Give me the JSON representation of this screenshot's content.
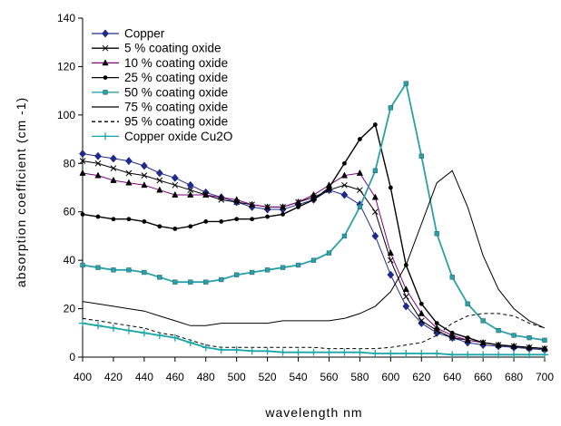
{
  "chart_data": {
    "type": "line",
    "title": "",
    "xlabel": "wavelength  nm",
    "ylabel": "absorption  coefficient    (cm -1)",
    "xlim": [
      400,
      700
    ],
    "ylim": [
      0,
      140
    ],
    "xticks": [
      400,
      420,
      440,
      460,
      480,
      500,
      520,
      540,
      560,
      580,
      600,
      620,
      640,
      660,
      680,
      700
    ],
    "yticks": [
      0,
      20,
      40,
      60,
      80,
      100,
      120,
      140
    ],
    "grid": false,
    "legend": "top-left",
    "series": [
      {
        "name": "Copper",
        "marker": "diamond",
        "color": "#1f2a8c",
        "dash": "",
        "x": [
          400,
          410,
          420,
          430,
          440,
          450,
          460,
          470,
          480,
          490,
          500,
          510,
          520,
          530,
          540,
          550,
          560,
          570,
          580,
          590,
          600,
          610,
          620,
          630,
          640,
          650,
          660,
          670,
          680,
          690,
          700
        ],
        "y": [
          84,
          83,
          82,
          81,
          79,
          76,
          74,
          71,
          68,
          66,
          64,
          62,
          61,
          61,
          63,
          65,
          69,
          67,
          63,
          50,
          34,
          21,
          14,
          10,
          8,
          6,
          5,
          4.5,
          4,
          3.5,
          3
        ]
      },
      {
        "name": "5 %   coating oxide",
        "marker": "x",
        "color": "#000000",
        "dash": "",
        "x": [
          400,
          410,
          420,
          430,
          440,
          450,
          460,
          470,
          480,
          490,
          500,
          510,
          520,
          530,
          540,
          550,
          560,
          570,
          580,
          590,
          600,
          610,
          620,
          630,
          640,
          650,
          660,
          670,
          680,
          690,
          700
        ],
        "y": [
          81,
          80,
          78,
          76,
          75,
          73,
          71,
          69,
          67,
          65,
          64,
          63,
          62,
          62,
          64,
          66,
          69,
          71,
          69,
          60,
          40,
          25,
          15,
          11,
          8,
          7,
          6,
          5,
          4.5,
          4,
          3.5
        ]
      },
      {
        "name": "10 %   coating oxide",
        "marker": "triangle",
        "color": "#800080",
        "dash": "",
        "x": [
          400,
          410,
          420,
          430,
          440,
          450,
          460,
          470,
          480,
          490,
          500,
          510,
          520,
          530,
          540,
          550,
          560,
          570,
          580,
          590,
          600,
          610,
          620,
          630,
          640,
          650,
          660,
          670,
          680,
          690,
          700
        ],
        "y": [
          76,
          75,
          73,
          72,
          71,
          69,
          67,
          67,
          67,
          66,
          65,
          63,
          62,
          62,
          64,
          67,
          71,
          75,
          76,
          66,
          43,
          28,
          18,
          12,
          9,
          7,
          6,
          5,
          4.5,
          4,
          3.5
        ]
      },
      {
        "name": "25 %   coating oxide",
        "marker": "circle",
        "color": "#000000",
        "dash": "",
        "x": [
          400,
          410,
          420,
          430,
          440,
          450,
          460,
          470,
          480,
          490,
          500,
          510,
          520,
          530,
          540,
          550,
          560,
          570,
          580,
          590,
          600,
          610,
          620,
          630,
          640,
          650,
          660,
          670,
          680,
          690,
          700
        ],
        "y": [
          59,
          58,
          57,
          57,
          56,
          54,
          53,
          54,
          56,
          56,
          57,
          57,
          58,
          59,
          62,
          65,
          70,
          80,
          90,
          96,
          70,
          38,
          22,
          14,
          10,
          8,
          6,
          5,
          4.5,
          4,
          3.5
        ]
      },
      {
        "name": "50 %   coating oxide",
        "marker": "square",
        "color": "#2aa0a8",
        "dash": "",
        "x": [
          400,
          410,
          420,
          430,
          440,
          450,
          460,
          470,
          480,
          490,
          500,
          510,
          520,
          530,
          540,
          550,
          560,
          570,
          580,
          590,
          600,
          610,
          620,
          630,
          640,
          650,
          660,
          670,
          680,
          690,
          700
        ],
        "y": [
          38,
          37,
          36,
          36,
          35,
          33,
          31,
          31,
          31,
          32,
          34,
          35,
          36,
          37,
          38,
          40,
          43,
          50,
          62,
          77,
          103,
          113,
          83,
          51,
          33,
          22,
          15,
          11,
          9,
          8,
          7
        ]
      },
      {
        "name": "75 %   coating oxide",
        "marker": "none",
        "color": "#000000",
        "dash": "",
        "x": [
          400,
          410,
          420,
          430,
          440,
          450,
          460,
          470,
          480,
          490,
          500,
          510,
          520,
          530,
          540,
          550,
          560,
          570,
          580,
          590,
          600,
          610,
          620,
          630,
          640,
          650,
          660,
          670,
          680,
          690,
          700
        ],
        "y": [
          23,
          22,
          21,
          20,
          19,
          17,
          15,
          13,
          13,
          14,
          14,
          14,
          14,
          15,
          15,
          15,
          15,
          16,
          18,
          21,
          27,
          38,
          55,
          72,
          77,
          62,
          42,
          28,
          20,
          15,
          12
        ]
      },
      {
        "name": "95 %   coating oxide",
        "marker": "none",
        "color": "#000000",
        "dash": "4,3",
        "x": [
          400,
          410,
          420,
          430,
          440,
          450,
          460,
          470,
          480,
          490,
          500,
          510,
          520,
          530,
          540,
          550,
          560,
          570,
          580,
          590,
          600,
          610,
          620,
          630,
          640,
          650,
          660,
          670,
          680,
          690,
          700
        ],
        "y": [
          16,
          15,
          14,
          13,
          12,
          10,
          9,
          7,
          5,
          4,
          4,
          4,
          4,
          4,
          4,
          4,
          3.5,
          3.5,
          3.5,
          3.5,
          4,
          5,
          6,
          9,
          14,
          17,
          18,
          18,
          17,
          14,
          12
        ]
      },
      {
        "name": "Copper oxide Cu2O",
        "marker": "plus",
        "color": "#1aa6a6",
        "dash": "",
        "x": [
          400,
          410,
          420,
          430,
          440,
          450,
          460,
          470,
          480,
          490,
          500,
          510,
          520,
          530,
          540,
          550,
          560,
          570,
          580,
          590,
          600,
          610,
          620,
          630,
          640,
          650,
          660,
          670,
          680,
          690,
          700
        ],
        "y": [
          14,
          13,
          12,
          11,
          10,
          9,
          8,
          6,
          4,
          3,
          3,
          2.5,
          2.5,
          2,
          2,
          2,
          2,
          2,
          2,
          1.5,
          1.5,
          1.5,
          1.5,
          1.5,
          1,
          1,
          1,
          1,
          1,
          1,
          1
        ]
      }
    ]
  }
}
